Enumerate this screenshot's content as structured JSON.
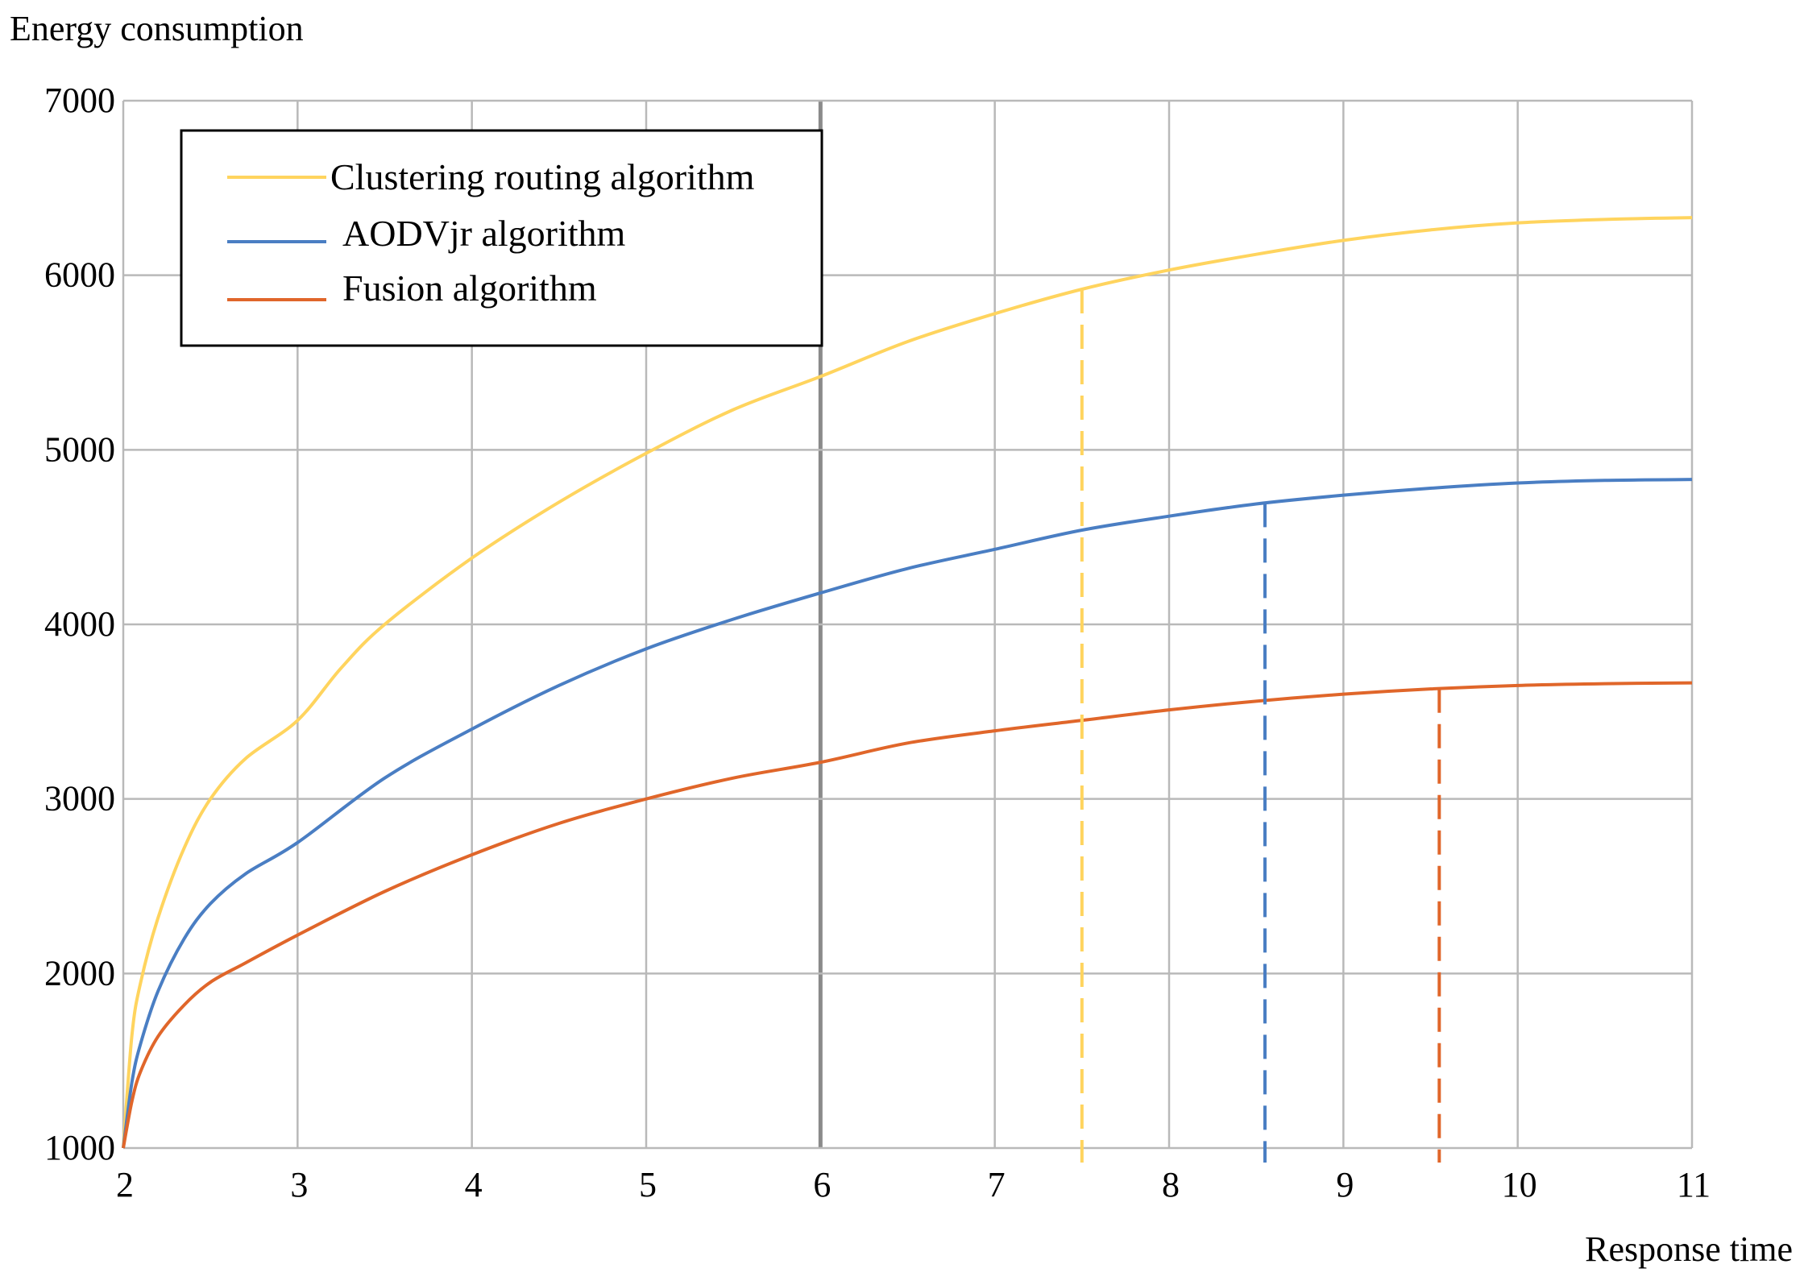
{
  "chart_data": {
    "type": "line",
    "xlabel": "Response time",
    "ylabel": "Energy consumption",
    "xlim": [
      2,
      11
    ],
    "ylim": [
      1000,
      7000
    ],
    "x_ticks": [
      "2",
      "3",
      "4",
      "5",
      "6",
      "7",
      "8",
      "9",
      "10",
      "11"
    ],
    "y_ticks": [
      "1000",
      "2000",
      "3000",
      "4000",
      "5000",
      "6000",
      "7000"
    ],
    "grid": true,
    "legend_position": "top-left",
    "series": [
      {
        "name": "Clustering routing algorithm",
        "color": "#FFD45E",
        "x": [
          2,
          2.05,
          2.1,
          2.2,
          2.35,
          2.5,
          2.7,
          3,
          3.25,
          3.5,
          4,
          4.5,
          5,
          5.5,
          6,
          6.5,
          7,
          7.5,
          8,
          8.5,
          9,
          9.5,
          10,
          10.5,
          11
        ],
        "y": [
          1000,
          1650,
          1950,
          2320,
          2720,
          3000,
          3230,
          3450,
          3750,
          4000,
          4380,
          4700,
          4980,
          5230,
          5420,
          5620,
          5780,
          5920,
          6030,
          6120,
          6200,
          6260,
          6300,
          6320,
          6330
        ],
        "marker_x": 7.5
      },
      {
        "name": "AODVjr algorithm",
        "color": "#4A7EC3",
        "x": [
          2,
          2.05,
          2.1,
          2.2,
          2.35,
          2.5,
          2.7,
          3,
          3.5,
          4,
          4.5,
          5,
          5.5,
          6,
          6.5,
          7,
          7.5,
          8,
          8.5,
          9,
          9.5,
          10,
          10.5,
          11
        ],
        "y": [
          1000,
          1380,
          1600,
          1900,
          2200,
          2400,
          2570,
          2750,
          3120,
          3400,
          3650,
          3860,
          4030,
          4180,
          4320,
          4430,
          4540,
          4620,
          4690,
          4740,
          4780,
          4810,
          4825,
          4830
        ],
        "marker_x": 8.55
      },
      {
        "name": "Fusion algorithm",
        "color": "#E0662A",
        "x": [
          2,
          2.05,
          2.1,
          2.2,
          2.35,
          2.5,
          2.7,
          3,
          3.5,
          4,
          4.5,
          5,
          5.5,
          6,
          6.5,
          7,
          7.5,
          8,
          8.5,
          9,
          9.5,
          10,
          10.5,
          11
        ],
        "y": [
          1000,
          1270,
          1440,
          1640,
          1820,
          1950,
          2060,
          2220,
          2470,
          2680,
          2860,
          3000,
          3120,
          3210,
          3320,
          3390,
          3450,
          3510,
          3560,
          3600,
          3630,
          3650,
          3660,
          3665
        ],
        "marker_x": 9.55
      }
    ],
    "highlight_x": 6
  }
}
